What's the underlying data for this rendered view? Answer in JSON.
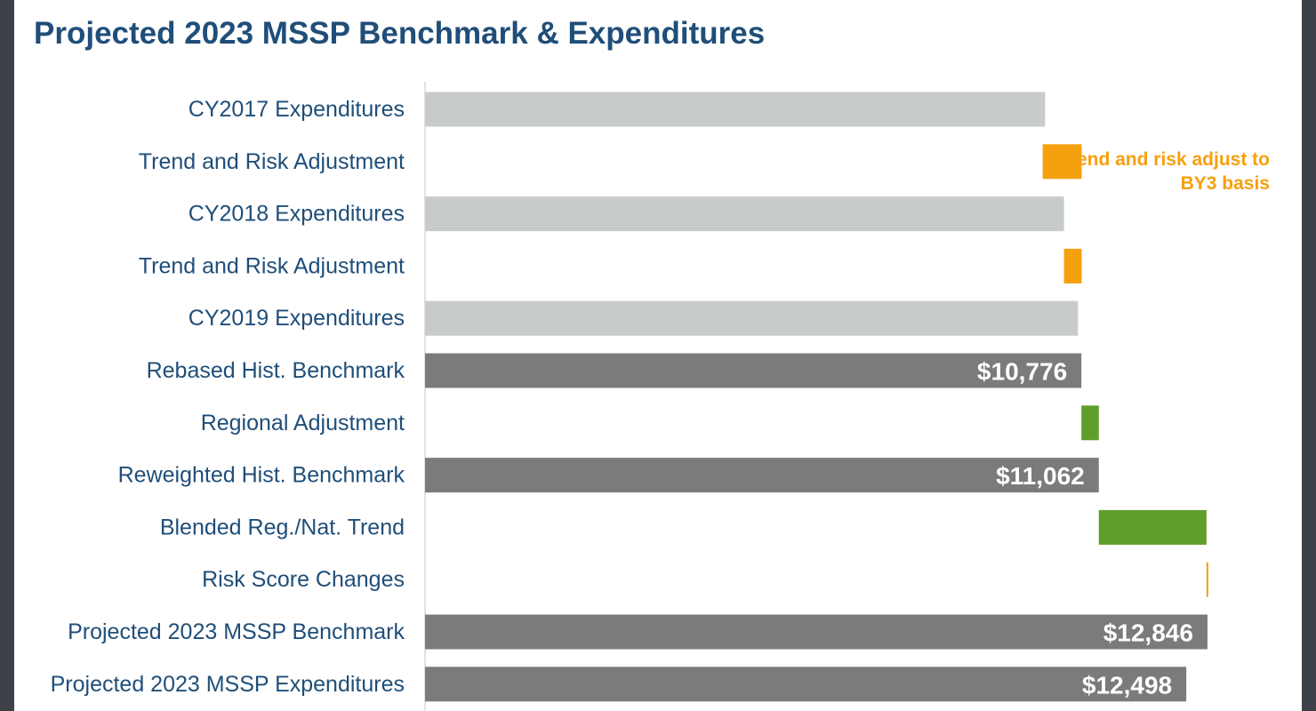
{
  "chart_data": {
    "type": "bar",
    "subtype": "waterfall",
    "orientation": "horizontal",
    "title": "Projected 2023 MSSP Benchmark & Expenditures",
    "xlim": [
      0,
      13000
    ],
    "grid": false,
    "annotation": "Trend and risk adjust to BY3 basis",
    "colors": {
      "expenditure": "#c8cbcc",
      "trend_risk": "#f5a00f",
      "benchmark": "#7b7b7b",
      "adjustment": "#5f9e2b",
      "label_text": "#1f4e79",
      "title_text": "#1f4e79",
      "annotation_text": "#f5a00f",
      "value_label_text": "#ffffff"
    },
    "bars": [
      {
        "label": "CY2017 Expenditures",
        "start": 0,
        "end": 10180,
        "kind": "expenditure",
        "value_label": ""
      },
      {
        "label": "Trend and Risk Adjustment",
        "start": 10140,
        "end": 10780,
        "kind": "trend_risk",
        "value_label": ""
      },
      {
        "label": "CY2018 Expenditures",
        "start": 0,
        "end": 10490,
        "kind": "expenditure",
        "value_label": ""
      },
      {
        "label": "Trend and Risk Adjustment",
        "start": 10490,
        "end": 10780,
        "kind": "trend_risk",
        "value_label": ""
      },
      {
        "label": "CY2019 Expenditures",
        "start": 0,
        "end": 10720,
        "kind": "expenditure",
        "value_label": ""
      },
      {
        "label": "Rebased Hist. Benchmark",
        "start": 0,
        "end": 10776,
        "kind": "benchmark",
        "value_label": "$10,776"
      },
      {
        "label": "Regional Adjustment",
        "start": 10776,
        "end": 11062,
        "kind": "adjustment",
        "value_label": ""
      },
      {
        "label": "Reweighted Hist. Benchmark",
        "start": 0,
        "end": 11062,
        "kind": "benchmark",
        "value_label": "$11,062"
      },
      {
        "label": "Blended Reg./Nat. Trend",
        "start": 11062,
        "end": 12830,
        "kind": "adjustment",
        "value_label": ""
      },
      {
        "label": "Risk Score Changes",
        "start": 12830,
        "end": 12846,
        "kind": "trend_risk",
        "value_label": ""
      },
      {
        "label": "Projected 2023 MSSP Benchmark",
        "start": 0,
        "end": 12846,
        "kind": "benchmark",
        "value_label": "$12,846"
      },
      {
        "label": "Projected 2023 MSSP Expenditures",
        "start": 0,
        "end": 12498,
        "kind": "benchmark",
        "value_label": "$12,498"
      }
    ]
  }
}
